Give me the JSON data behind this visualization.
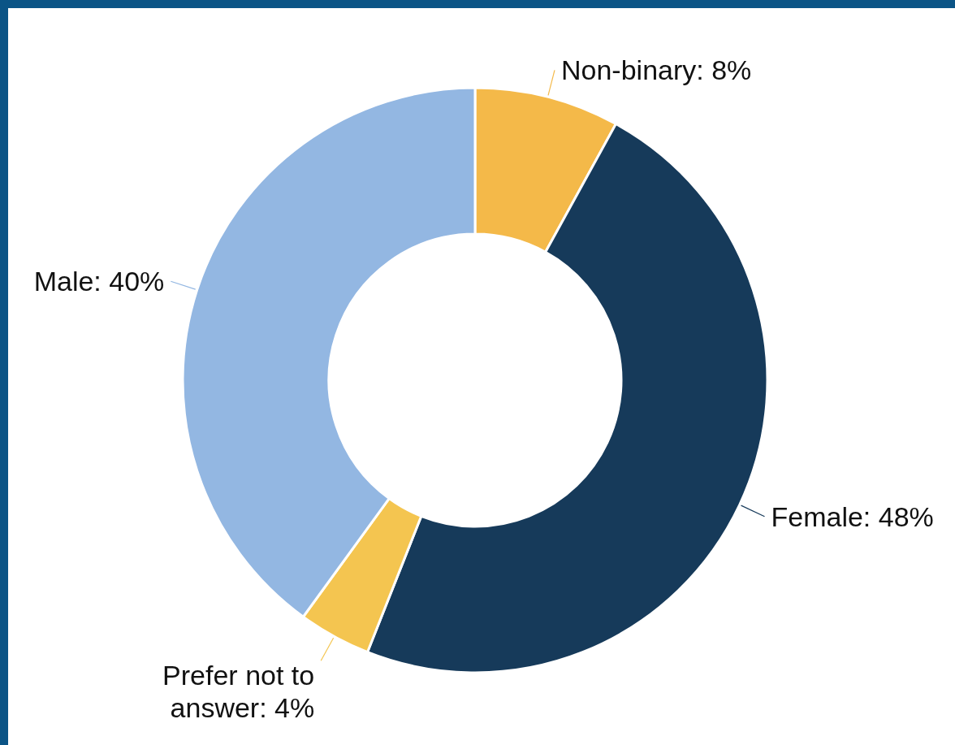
{
  "chart_data": {
    "type": "donut",
    "categories": [
      "Non-binary",
      "Female",
      "Prefer not to answer",
      "Male"
    ],
    "values": [
      8,
      48,
      4,
      40
    ],
    "value_labels": [
      "8%",
      "48%",
      "4%",
      "40%"
    ],
    "colors": [
      "#f4b949",
      "#163a5a",
      "#f4c550",
      "#93b7e2"
    ]
  }
}
